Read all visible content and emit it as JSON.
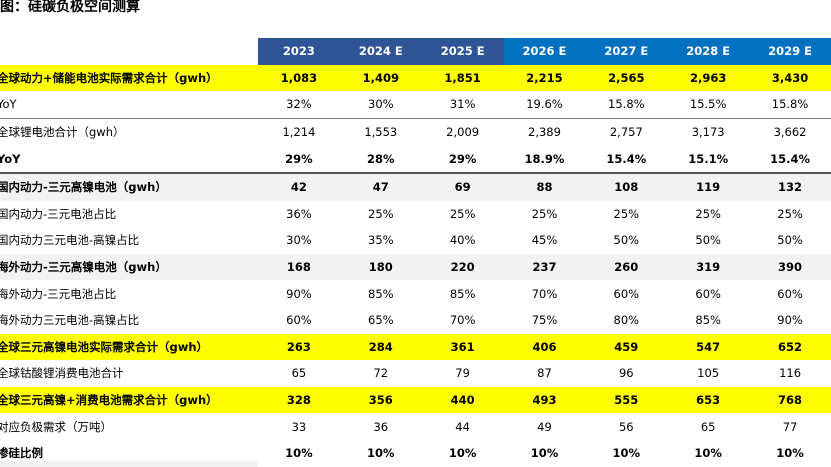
{
  "title": "图：硅碳负极空间测算",
  "columns": [
    "2023",
    "2024 E",
    "2025 E",
    "2026 E",
    "2027 E",
    "2028 E",
    "2029 E"
  ],
  "colors": {
    "header_actual": "#2f5597",
    "header_estimate": "#0070c0",
    "highlight": "#ffff00"
  },
  "rows": [
    {
      "label": "全球动力+储能电池实际需求合计（gwh）",
      "values": [
        "1,083",
        "1,409",
        "1,851",
        "2,215",
        "2,565",
        "2,963",
        "3,430"
      ]
    },
    {
      "label": "YoY",
      "values": [
        "32%",
        "30%",
        "31%",
        "19.6%",
        "15.8%",
        "15.5%",
        "15.8%"
      ]
    },
    {
      "label": "全球锂电池合计（gwh）",
      "values": [
        "1,214",
        "1,553",
        "2,009",
        "2,389",
        "2,757",
        "3,173",
        "3,662"
      ]
    },
    {
      "label": "YoY",
      "values": [
        "29%",
        "28%",
        "29%",
        "18.9%",
        "15.4%",
        "15.1%",
        "15.4%"
      ]
    },
    {
      "label": "国内动力-三元高镍电池（gwh）",
      "values": [
        "42",
        "47",
        "69",
        "88",
        "108",
        "119",
        "132"
      ]
    },
    {
      "label": "国内动力-三元电池占比",
      "values": [
        "36%",
        "25%",
        "25%",
        "25%",
        "25%",
        "25%",
        "25%"
      ]
    },
    {
      "label": "国内动力三元电池-高镍占比",
      "values": [
        "30%",
        "35%",
        "40%",
        "45%",
        "50%",
        "50%",
        "50%"
      ]
    },
    {
      "label": "海外动力-三元高镍电池（gwh）",
      "values": [
        "168",
        "180",
        "220",
        "237",
        "260",
        "319",
        "390"
      ]
    },
    {
      "label": "海外动力-三元电池占比",
      "values": [
        "90%",
        "85%",
        "85%",
        "70%",
        "60%",
        "60%",
        "60%"
      ]
    },
    {
      "label": "海外动力三元电池-高镍占比",
      "values": [
        "60%",
        "65%",
        "70%",
        "75%",
        "80%",
        "85%",
        "90%"
      ]
    },
    {
      "label": "全球三元高镍电池实际需求合计（gwh）",
      "values": [
        "263",
        "284",
        "361",
        "406",
        "459",
        "547",
        "652"
      ]
    },
    {
      "label": "全球钴酸锂消费电池合计",
      "values": [
        "65",
        "72",
        "79",
        "87",
        "96",
        "105",
        "116"
      ]
    },
    {
      "label": "全球三元高镍+消费电池需求合计（gwh）",
      "values": [
        "328",
        "356",
        "440",
        "493",
        "555",
        "653",
        "768"
      ]
    },
    {
      "label": "对应负极需求（万吨）",
      "values": [
        "33",
        "36",
        "44",
        "49",
        "56",
        "65",
        "77"
      ]
    },
    {
      "label": "掺硅比例",
      "values": [
        "10%",
        "10%",
        "10%",
        "10%",
        "10%",
        "10%",
        "10%"
      ]
    }
  ]
}
